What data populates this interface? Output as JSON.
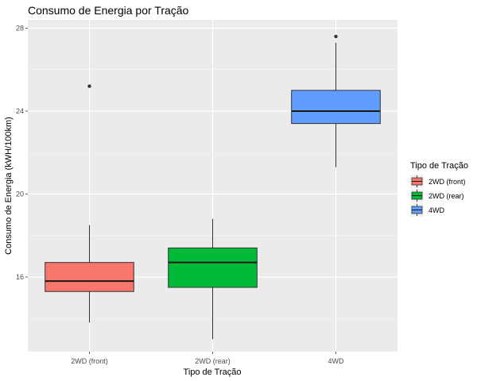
{
  "chart_data": {
    "type": "boxplot",
    "title": "Consumo de Energia por Tração",
    "xlabel": "Tipo de Tração",
    "ylabel": "Consumo de Energia (kWH/100km)",
    "categories": [
      "2WD (front)",
      "2WD (rear)",
      "4WD"
    ],
    "ylim": [
      12.4,
      28.4
    ],
    "yticks": [
      16,
      20,
      24,
      28
    ],
    "grid": true,
    "legend": {
      "title": "Tipo de Tração",
      "position": "right",
      "entries": [
        "2WD (front)",
        "2WD (rear)",
        "4WD"
      ]
    },
    "colors": [
      "#f8766d",
      "#00ba38",
      "#619cff"
    ],
    "boxes": [
      {
        "name": "2WD (front)",
        "whisker_low": 13.8,
        "q1": 15.3,
        "median": 15.8,
        "q3": 16.7,
        "whisker_high": 18.5,
        "outliers": [
          25.2
        ]
      },
      {
        "name": "2WD (rear)",
        "whisker_low": 13.0,
        "q1": 15.5,
        "median": 16.7,
        "q3": 17.4,
        "whisker_high": 18.8,
        "outliers": []
      },
      {
        "name": "4WD",
        "whisker_low": 21.3,
        "q1": 23.4,
        "median": 24.0,
        "q3": 25.0,
        "whisker_high": 27.3,
        "outliers": [
          27.6
        ]
      }
    ]
  }
}
